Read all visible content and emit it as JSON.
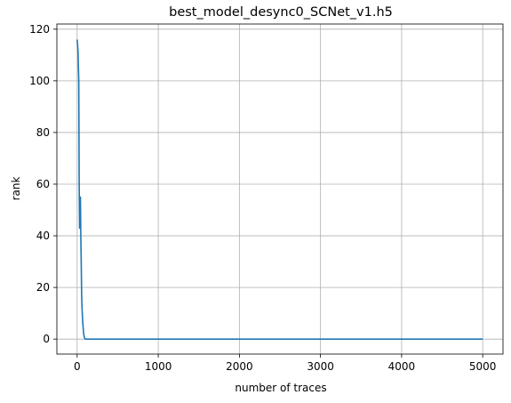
{
  "chart_data": {
    "type": "line",
    "title": "best_model_desync0_SCNet_v1.h5",
    "xlabel": "number of traces",
    "ylabel": "rank",
    "xlim": [
      -250,
      5250
    ],
    "ylim": [
      -5.8,
      122
    ],
    "xticks": [
      0,
      1000,
      2000,
      3000,
      4000,
      5000
    ],
    "yticks": [
      0,
      20,
      40,
      60,
      80,
      100,
      120
    ],
    "grid": true,
    "series": [
      {
        "color": "#1f77b4",
        "x": [
          0,
          10,
          20,
          25,
          30,
          35,
          40,
          45,
          50,
          55,
          60,
          70,
          80,
          90,
          100,
          150,
          200,
          300,
          1000,
          2000,
          3000,
          4000,
          5000
        ],
        "y": [
          116,
          112,
          100,
          60,
          43,
          50,
          55,
          40,
          30,
          18,
          12,
          6,
          2,
          0.5,
          0,
          0,
          0,
          0,
          0,
          0,
          0,
          0,
          0
        ]
      }
    ]
  }
}
